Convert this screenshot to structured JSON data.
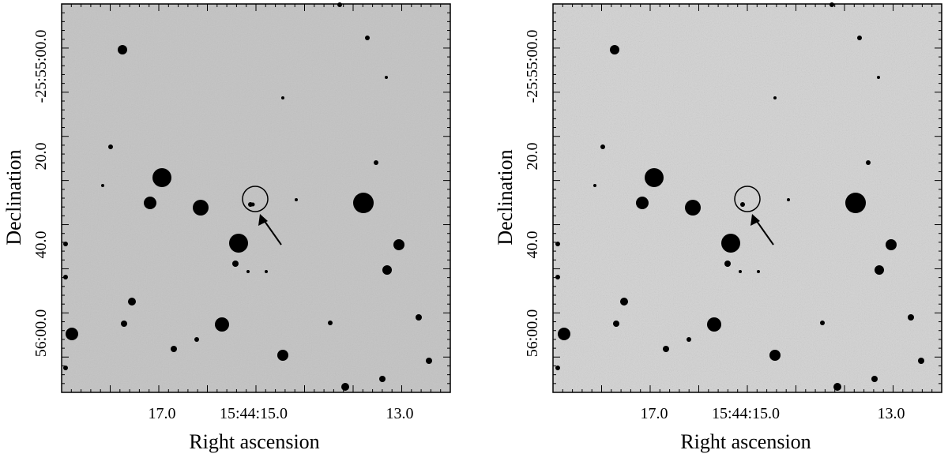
{
  "colors": {
    "sky_background_left": "#c3c3c3",
    "sky_background_right": "#d3d3d3",
    "stars": "#000000",
    "frame": "#000000"
  },
  "panels": [
    {
      "id": "left",
      "xlabel": "Right ascension",
      "ylabel": "Declination",
      "xticks": [
        "17.0",
        "15:44:15.0",
        "13.0"
      ],
      "yticks": [
        "-25:55:00.0",
        "20.0",
        "40.0",
        "56:00.0"
      ],
      "marker": "circle-with-arrow",
      "target_visible": true
    },
    {
      "id": "right",
      "xlabel": "Right ascension",
      "ylabel": "Declination",
      "xticks": [
        "17.0",
        "15:44:15.0",
        "13.0"
      ],
      "yticks": [
        "-25:55:00.0",
        "20.0",
        "40.0",
        "56:00.0"
      ],
      "marker": "circle-with-arrow",
      "target_visible": false
    }
  ]
}
